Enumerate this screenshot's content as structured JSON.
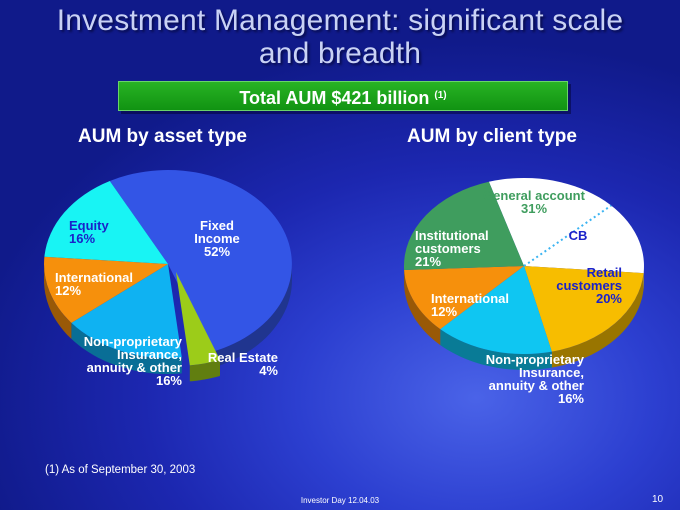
{
  "slide": {
    "title_line1": "Investment Management: significant scale",
    "title_line2": "and breadth",
    "banner_text": "Total AUM $421 billion",
    "banner_note": "(1)",
    "footnote": "(1) As of September 30, 2003",
    "footer_center": "Investor Day 12.04.03",
    "page_number": "10"
  },
  "chart_data": [
    {
      "type": "pie",
      "title": "AUM by asset type",
      "slices": [
        {
          "label_lines": [
            "Fixed",
            "Income",
            "52%"
          ],
          "value": 52,
          "color": "#3355e6"
        },
        {
          "label_lines": [
            "Real Estate",
            "4%"
          ],
          "value": 4,
          "color": "#9ccc19"
        },
        {
          "label_lines": [
            "Non-proprietary",
            "Insurance,",
            "annuity & other",
            "16%"
          ],
          "value": 16,
          "color": "#0fb2f2"
        },
        {
          "label_lines": [
            "International",
            "12%"
          ],
          "value": 12,
          "color": "#f6900c"
        },
        {
          "label_lines": [
            "Equity",
            "16%"
          ],
          "value": 16,
          "color": "#18f4f4"
        }
      ]
    },
    {
      "type": "pie",
      "title": "AUM by client type",
      "slices": [
        {
          "label_lines": [
            "General account",
            "31%"
          ],
          "value": 31,
          "color": "#ffffff"
        },
        {
          "label_lines": [
            "Retail",
            "customers",
            "20%"
          ],
          "value": 20,
          "color": "#f7bd00"
        },
        {
          "label_lines": [
            "Non-proprietary",
            "Insurance,",
            "annuity & other",
            "16%"
          ],
          "value": 16,
          "color": "#0fc6f2"
        },
        {
          "label_lines": [
            "International",
            "12%"
          ],
          "value": 12,
          "color": "#f6900c"
        },
        {
          "label_lines": [
            "Institutional",
            "customers",
            "21%"
          ],
          "value": 21,
          "color": "#3f9d5e"
        }
      ],
      "annotation": "CB"
    }
  ]
}
